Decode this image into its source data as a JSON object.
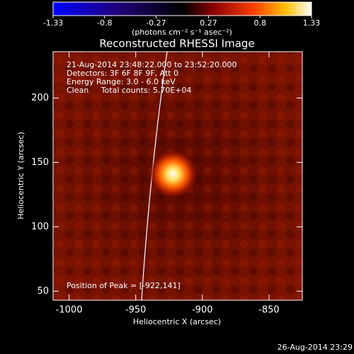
{
  "chart_data": {
    "type": "image",
    "title": "Reconstructed RHESSI Image",
    "colorbar": {
      "label": "(photons cm⁻² s⁻¹ asec⁻²)",
      "lim": [
        -1.33,
        1.33
      ],
      "ticks": [
        -1.33,
        -0.8,
        -0.27,
        0.27,
        0.8,
        1.33
      ]
    },
    "x_label": "Heliocentric X (arcsec)",
    "y_label": "Heliocentric Y (arcsec)",
    "xlim": [
      -1012,
      -825
    ],
    "ylim": [
      43,
      236
    ],
    "xticks": [
      -1000,
      -950,
      -900,
      -850
    ],
    "yticks": [
      50,
      100,
      150,
      200
    ],
    "annotations": [
      "21-Aug-2014 23:48:22.000 to 23:52:20.000",
      "Detectors: 3F 6F 8F 9F, Att 0",
      "Energy Range: 3.0 - 6.0 keV",
      "Clean     Total counts: 5.70E+04"
    ],
    "peak_label": "Position of Peak = [-922,141]",
    "peak": {
      "x": -922,
      "y": 141
    },
    "footer": "26-Aug-2014 23:29"
  }
}
